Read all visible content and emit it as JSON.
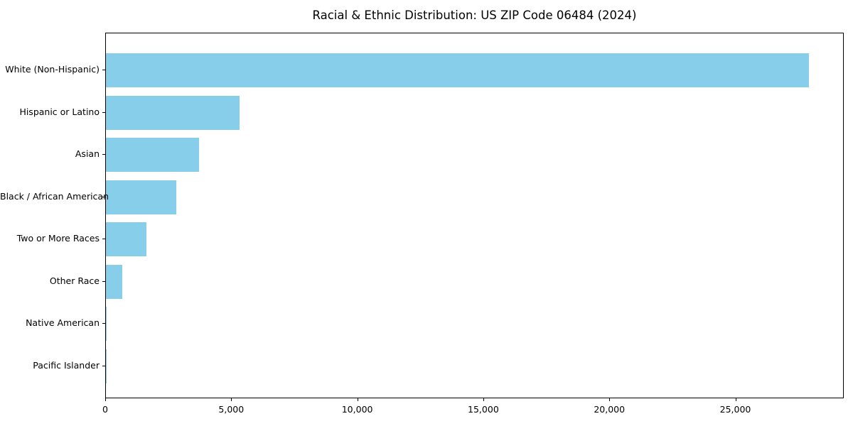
{
  "chart_data": {
    "type": "bar",
    "orientation": "horizontal",
    "title": "Racial & Ethnic Distribution: US ZIP Code 06484 (2024)",
    "categories": [
      "White (Non-Hispanic)",
      "Hispanic or Latino",
      "Asian",
      "Black / African American",
      "Two or More Races",
      "Other Race",
      "Native American",
      "Pacific Islander"
    ],
    "values": [
      27900,
      5300,
      3700,
      2800,
      1600,
      650,
      30,
      10
    ],
    "bar_color": "#87CEEB",
    "xlabel": "",
    "ylabel": "",
    "xlim": [
      0,
      29300
    ],
    "x_ticks": [
      0,
      5000,
      10000,
      15000,
      20000,
      25000
    ],
    "x_tick_labels": [
      "0",
      "5,000",
      "10,000",
      "15,000",
      "20,000",
      "25,000"
    ],
    "grid": false,
    "legend": null,
    "plot_border": "#000000",
    "background": "#ffffff"
  }
}
